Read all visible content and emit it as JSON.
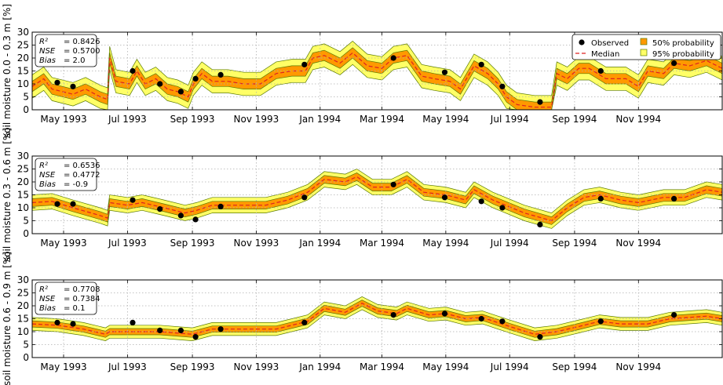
{
  "x_months": [
    {
      "label": "May 1993",
      "date": "1993-05-01"
    },
    {
      "label": "Jul 1993",
      "date": "1993-07-01"
    },
    {
      "label": "Sep 1993",
      "date": "1993-09-01"
    },
    {
      "label": "Nov 1993",
      "date": "1993-11-01"
    },
    {
      "label": "Jan 1994",
      "date": "1994-01-01"
    },
    {
      "label": "Mar 1994",
      "date": "1994-03-01"
    },
    {
      "label": "May 1994",
      "date": "1994-05-01"
    },
    {
      "label": "Jul 1994",
      "date": "1994-07-01"
    },
    {
      "label": "Sep 1994",
      "date": "1994-09-01"
    },
    {
      "label": "Nov 1994",
      "date": "1994-11-01"
    }
  ],
  "x_range": [
    "1993-04-01",
    "1995-01-20"
  ],
  "legend": {
    "observed": "Observed",
    "median": "Median",
    "p50": "50% probability",
    "p95": "95% probability"
  },
  "colors": {
    "band95": "#ffff66",
    "band50": "#ff9900",
    "band_edge": "#5a7a00",
    "median": "#dd2222",
    "observed": "#000000"
  },
  "chart_data": [
    {
      "type": "area",
      "ylabel": "soil moisture 0.0 - 0.3 m [%]",
      "ylim": [
        0,
        30
      ],
      "yticks": [
        0,
        5,
        10,
        15,
        20,
        25,
        30
      ],
      "grid": true,
      "legend_position": "top-right",
      "stats": {
        "r2_label": "R²",
        "r2": "= 0.8426",
        "nse_label": "NSE",
        "nse": "= 0.5700",
        "bias_label": "Bias",
        "bias": "= 2.0"
      },
      "median": [
        [
          "1993-04-01",
          9
        ],
        [
          "1993-04-12",
          12
        ],
        [
          "1993-04-20",
          8
        ],
        [
          "1993-05-10",
          6
        ],
        [
          "1993-05-22",
          8
        ],
        [
          "1993-06-05",
          5
        ],
        [
          "1993-06-12",
          4
        ],
        [
          "1993-06-14",
          20
        ],
        [
          "1993-06-20",
          11
        ],
        [
          "1993-07-03",
          10
        ],
        [
          "1993-07-10",
          15
        ],
        [
          "1993-07-18",
          10
        ],
        [
          "1993-07-28",
          12
        ],
        [
          "1993-08-08",
          8
        ],
        [
          "1993-08-18",
          7
        ],
        [
          "1993-08-28",
          5
        ],
        [
          "1993-09-02",
          10
        ],
        [
          "1993-09-10",
          14
        ],
        [
          "1993-09-20",
          11
        ],
        [
          "1993-10-05",
          11
        ],
        [
          "1993-10-20",
          10
        ],
        [
          "1993-11-05",
          10
        ],
        [
          "1993-11-20",
          14
        ],
        [
          "1993-12-05",
          15
        ],
        [
          "1993-12-18",
          15
        ],
        [
          "1993-12-25",
          20
        ],
        [
          "1994-01-05",
          21
        ],
        [
          "1994-01-20",
          18
        ],
        [
          "1994-02-01",
          22
        ],
        [
          "1994-02-15",
          17
        ],
        [
          "1994-03-01",
          16
        ],
        [
          "1994-03-12",
          20
        ],
        [
          "1994-03-25",
          21
        ],
        [
          "1994-04-08",
          13
        ],
        [
          "1994-04-20",
          12
        ],
        [
          "1994-05-05",
          11
        ],
        [
          "1994-05-15",
          8
        ],
        [
          "1994-05-28",
          17
        ],
        [
          "1994-06-10",
          14
        ],
        [
          "1994-06-20",
          10
        ],
        [
          "1994-06-28",
          5
        ],
        [
          "1994-07-08",
          2
        ],
        [
          "1994-07-25",
          1
        ],
        [
          "1994-08-10",
          1
        ],
        [
          "1994-08-15",
          14
        ],
        [
          "1994-08-25",
          12
        ],
        [
          "1994-09-05",
          16
        ],
        [
          "1994-09-15",
          16
        ],
        [
          "1994-10-01",
          12
        ],
        [
          "1994-10-20",
          12
        ],
        [
          "1994-11-01",
          9
        ],
        [
          "1994-11-10",
          15
        ],
        [
          "1994-11-25",
          14
        ],
        [
          "1994-12-05",
          18
        ],
        [
          "1994-12-20",
          17
        ],
        [
          "1995-01-05",
          19
        ],
        [
          "1995-01-20",
          16
        ]
      ],
      "p50_halfwidth": 2,
      "p95_halfwidth": 4.5,
      "observed": [
        [
          "1993-04-25",
          10.5
        ],
        [
          "1993-05-10",
          9
        ],
        [
          "1993-07-06",
          15
        ],
        [
          "1993-08-01",
          10
        ],
        [
          "1993-08-21",
          7
        ],
        [
          "1993-09-04",
          12
        ],
        [
          "1993-09-28",
          13.5
        ],
        [
          "1993-12-17",
          17.5
        ],
        [
          "1994-03-12",
          20
        ],
        [
          "1994-04-30",
          14.5
        ],
        [
          "1994-06-04",
          17.5
        ],
        [
          "1994-06-24",
          9
        ],
        [
          "1994-07-30",
          3
        ],
        [
          "1994-09-26",
          15
        ],
        [
          "1994-12-05",
          18
        ]
      ]
    },
    {
      "type": "area",
      "ylabel": "soil moisture 0.3 - 0.6 m [%]",
      "ylim": [
        0,
        30
      ],
      "yticks": [
        0,
        5,
        10,
        15,
        20,
        25,
        30
      ],
      "grid": true,
      "stats": {
        "r2_label": "R²",
        "r2": "= 0.6536",
        "nse_label": "NSE",
        "nse": "= 0.4772",
        "bias_label": "Bias",
        "bias": "= -0.9"
      },
      "median": [
        [
          "1993-04-01",
          12
        ],
        [
          "1993-04-20",
          12.5
        ],
        [
          "1993-05-10",
          10
        ],
        [
          "1993-06-05",
          7
        ],
        [
          "1993-06-12",
          6
        ],
        [
          "1993-06-14",
          12
        ],
        [
          "1993-07-01",
          11
        ],
        [
          "1993-07-15",
          12
        ],
        [
          "1993-08-05",
          10
        ],
        [
          "1993-08-25",
          8
        ],
        [
          "1993-09-05",
          9
        ],
        [
          "1993-09-20",
          11
        ],
        [
          "1993-10-15",
          11
        ],
        [
          "1993-11-10",
          11
        ],
        [
          "1993-12-01",
          13
        ],
        [
          "1993-12-20",
          16
        ],
        [
          "1994-01-05",
          21
        ],
        [
          "1994-01-25",
          20
        ],
        [
          "1994-02-05",
          22
        ],
        [
          "1994-02-20",
          18
        ],
        [
          "1994-03-10",
          18
        ],
        [
          "1994-03-25",
          21
        ],
        [
          "1994-04-10",
          16
        ],
        [
          "1994-05-01",
          15
        ],
        [
          "1994-05-20",
          13
        ],
        [
          "1994-05-28",
          17
        ],
        [
          "1994-06-15",
          13
        ],
        [
          "1994-07-15",
          8
        ],
        [
          "1994-08-10",
          5
        ],
        [
          "1994-08-25",
          10
        ],
        [
          "1994-09-10",
          14
        ],
        [
          "1994-09-25",
          15
        ],
        [
          "1994-10-15",
          13
        ],
        [
          "1994-11-01",
          12
        ],
        [
          "1994-11-25",
          14
        ],
        [
          "1994-12-15",
          14
        ],
        [
          "1995-01-05",
          17
        ],
        [
          "1995-01-20",
          16
        ]
      ],
      "p50_halfwidth": 1.5,
      "p95_halfwidth": 3,
      "observed": [
        [
          "1993-04-25",
          11.5
        ],
        [
          "1993-05-10",
          11.5
        ],
        [
          "1993-07-06",
          13
        ],
        [
          "1993-08-01",
          9.5
        ],
        [
          "1993-08-21",
          7
        ],
        [
          "1993-09-04",
          5.5
        ],
        [
          "1993-09-28",
          10.5
        ],
        [
          "1993-12-17",
          14
        ],
        [
          "1994-03-12",
          19
        ],
        [
          "1994-04-30",
          14
        ],
        [
          "1994-06-04",
          12.5
        ],
        [
          "1994-06-24",
          10
        ],
        [
          "1994-07-30",
          3.5
        ],
        [
          "1994-09-26",
          13.5
        ],
        [
          "1994-12-05",
          13.5
        ]
      ]
    },
    {
      "type": "area",
      "ylabel": "soil moisture 0.6 - 0.9 m [%]",
      "ylim": [
        0,
        30
      ],
      "yticks": [
        0,
        5,
        10,
        15,
        20,
        25,
        30
      ],
      "grid": true,
      "stats": {
        "r2_label": "R²",
        "r2": "= 0.7708",
        "nse_label": "NSE",
        "nse": "= 0.7384",
        "bias_label": "Bias",
        "bias": "= 0.1"
      },
      "median": [
        [
          "1993-04-01",
          13
        ],
        [
          "1993-04-25",
          12.5
        ],
        [
          "1993-05-20",
          11
        ],
        [
          "1993-06-10",
          9
        ],
        [
          "1993-06-14",
          10
        ],
        [
          "1993-07-01",
          10
        ],
        [
          "1993-08-01",
          10
        ],
        [
          "1993-09-01",
          9
        ],
        [
          "1993-09-20",
          11
        ],
        [
          "1993-10-20",
          11
        ],
        [
          "1993-11-20",
          11
        ],
        [
          "1993-12-20",
          14
        ],
        [
          "1994-01-05",
          19
        ],
        [
          "1994-01-25",
          17.5
        ],
        [
          "1994-02-10",
          21
        ],
        [
          "1994-02-25",
          18
        ],
        [
          "1994-03-15",
          17
        ],
        [
          "1994-03-25",
          19
        ],
        [
          "1994-04-15",
          16.5
        ],
        [
          "1994-05-01",
          17
        ],
        [
          "1994-05-20",
          15
        ],
        [
          "1994-06-05",
          15.5
        ],
        [
          "1994-07-01",
          12
        ],
        [
          "1994-07-25",
          9
        ],
        [
          "1994-08-15",
          10
        ],
        [
          "1994-09-05",
          12
        ],
        [
          "1994-09-25",
          14
        ],
        [
          "1994-10-15",
          13
        ],
        [
          "1994-11-10",
          13
        ],
        [
          "1994-12-01",
          15
        ],
        [
          "1995-01-05",
          16
        ],
        [
          "1995-01-20",
          15
        ]
      ],
      "p50_halfwidth": 1.2,
      "p95_halfwidth": 2.5,
      "observed": [
        [
          "1993-04-25",
          13.5
        ],
        [
          "1993-05-10",
          13
        ],
        [
          "1993-07-06",
          13.5
        ],
        [
          "1993-08-01",
          10.5
        ],
        [
          "1993-08-21",
          10.5
        ],
        [
          "1993-09-04",
          8
        ],
        [
          "1993-09-28",
          11
        ],
        [
          "1993-12-17",
          13.5
        ],
        [
          "1994-03-12",
          16.5
        ],
        [
          "1994-04-30",
          17
        ],
        [
          "1994-06-04",
          15
        ],
        [
          "1994-06-24",
          14
        ],
        [
          "1994-07-30",
          8
        ],
        [
          "1994-09-26",
          14
        ],
        [
          "1994-12-05",
          16.5
        ]
      ]
    }
  ]
}
